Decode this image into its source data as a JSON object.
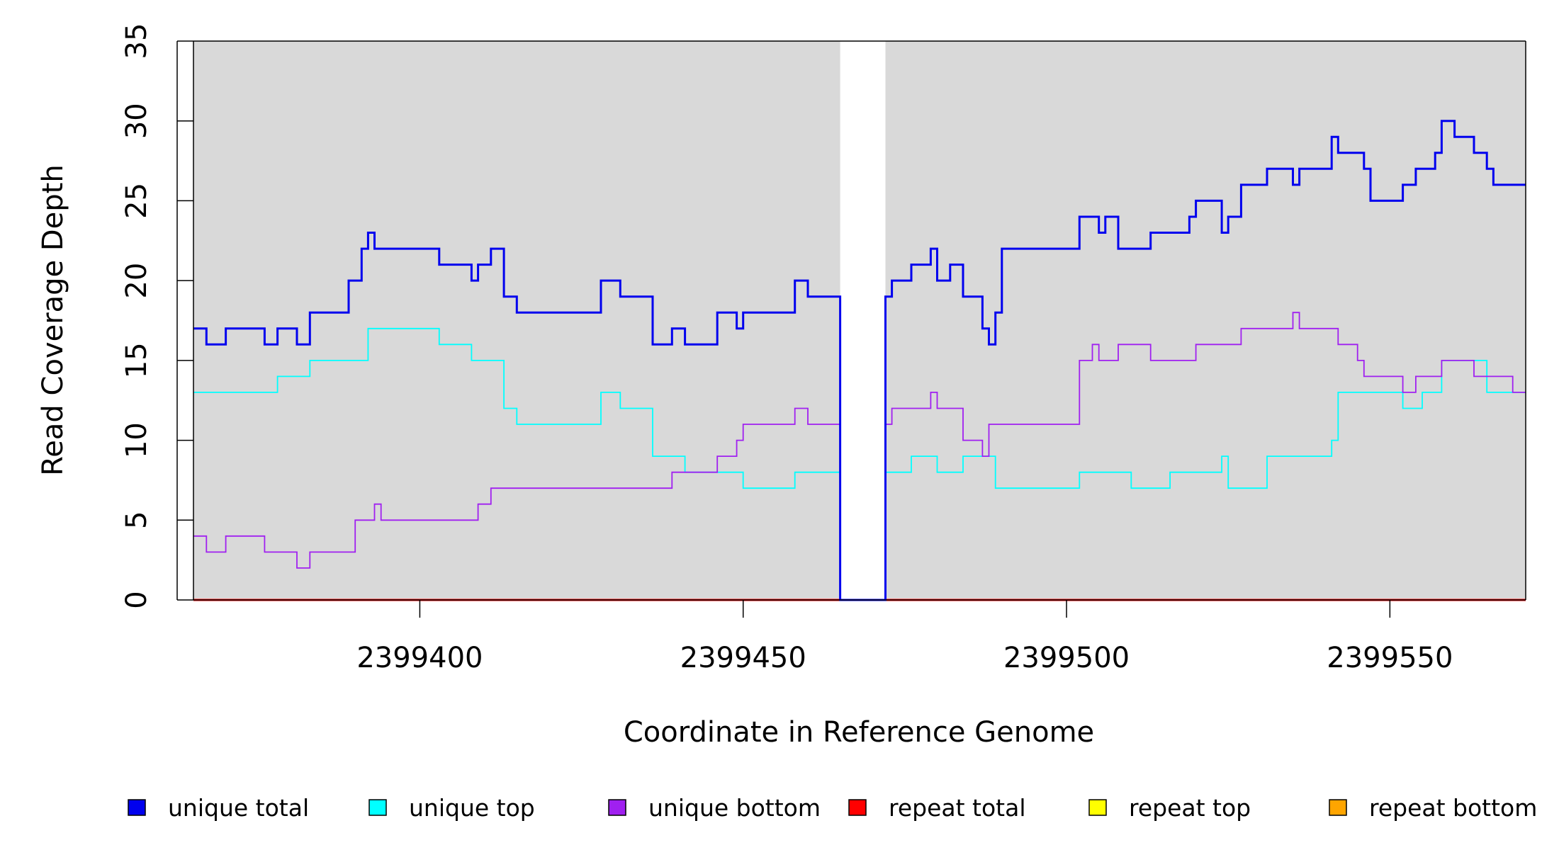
{
  "chart_data": {
    "type": "line",
    "title": "",
    "xlabel": "Coordinate in Reference Genome",
    "ylabel": "Read Coverage Depth",
    "xlim": [
      2399365,
      2399571
    ],
    "ylim": [
      0,
      35
    ],
    "yticks": [
      0,
      5,
      10,
      15,
      20,
      25,
      30,
      35
    ],
    "xticks": [
      2399400,
      2399450,
      2399500,
      2399550
    ],
    "xtick_labels": [
      "2399400",
      "2399450",
      "2399500",
      "2399550"
    ],
    "ytick_labels": [
      "0",
      "5",
      "10",
      "15",
      "20",
      "25",
      "30",
      "35"
    ],
    "background": "#d9d9d9",
    "gap": [
      2399465,
      2399472
    ],
    "legend": {
      "placement": "bottom",
      "entries": [
        {
          "label": "unique total",
          "color": "#0000ee"
        },
        {
          "label": "unique top",
          "color": "#00ffff"
        },
        {
          "label": "unique bottom",
          "color": "#a020f0"
        },
        {
          "label": "repeat total",
          "color": "#ff0000"
        },
        {
          "label": "repeat top",
          "color": "#ffff00"
        },
        {
          "label": "repeat bottom",
          "color": "#ffa500"
        }
      ]
    },
    "series": [
      {
        "name": "unique total",
        "color": "#0000ee",
        "step": true,
        "x": [
          2399365,
          2399367,
          2399370,
          2399376,
          2399378,
          2399381,
          2399383,
          2399389,
          2399391,
          2399392,
          2399393,
          2399403,
          2399408,
          2399409,
          2399411,
          2399413,
          2399415,
          2399428,
          2399431,
          2399436,
          2399439,
          2399441,
          2399446,
          2399449,
          2399450,
          2399458,
          2399460,
          2399465,
          2399472,
          2399473,
          2399476,
          2399479,
          2399480,
          2399482,
          2399484,
          2399487,
          2399488,
          2399489,
          2399490,
          2399502,
          2399505,
          2399506,
          2399508,
          2399513,
          2399519,
          2399520,
          2399524,
          2399525,
          2399527,
          2399531,
          2399535,
          2399536,
          2399541,
          2399542,
          2399546,
          2399547,
          2399552,
          2399554,
          2399557,
          2399558,
          2399560,
          2399563,
          2399565,
          2399566,
          2399569,
          2399571
        ],
        "y": [
          17,
          16,
          17,
          16,
          17,
          16,
          18,
          20,
          22,
          23,
          22,
          21,
          20,
          21,
          22,
          19,
          18,
          20,
          19,
          16,
          17,
          16,
          18,
          17,
          18,
          20,
          19,
          0,
          19,
          20,
          21,
          22,
          20,
          21,
          19,
          17,
          16,
          18,
          22,
          24,
          23,
          24,
          22,
          23,
          24,
          25,
          23,
          24,
          26,
          27,
          26,
          27,
          29,
          28,
          27,
          25,
          26,
          27,
          28,
          30,
          29,
          28,
          27,
          26,
          26,
          26
        ]
      },
      {
        "name": "unique top",
        "color": "#00ffff",
        "step": true,
        "x": [
          2399365,
          2399378,
          2399383,
          2399392,
          2399403,
          2399408,
          2399413,
          2399415,
          2399428,
          2399431,
          2399436,
          2399441,
          2399450,
          2399458,
          2399465,
          2399472,
          2399476,
          2399480,
          2399484,
          2399489,
          2399502,
          2399510,
          2399516,
          2399524,
          2399525,
          2399531,
          2399541,
          2399542,
          2399552,
          2399555,
          2399558,
          2399560,
          2399565,
          2399571
        ],
        "y": [
          13,
          14,
          15,
          17,
          16,
          15,
          12,
          11,
          13,
          12,
          9,
          8,
          7,
          8,
          0,
          8,
          9,
          8,
          9,
          7,
          8,
          7,
          8,
          9,
          7,
          9,
          10,
          13,
          12,
          13,
          15,
          15,
          13,
          13
        ]
      },
      {
        "name": "unique bottom",
        "color": "#a020f0",
        "step": true,
        "x": [
          2399365,
          2399367,
          2399370,
          2399376,
          2399381,
          2399383,
          2399390,
          2399393,
          2399394,
          2399409,
          2399411,
          2399439,
          2399446,
          2399449,
          2399450,
          2399458,
          2399460,
          2399465,
          2399472,
          2399473,
          2399479,
          2399480,
          2399484,
          2399487,
          2399488,
          2399502,
          2399504,
          2399505,
          2399508,
          2399513,
          2399520,
          2399527,
          2399535,
          2399536,
          2399542,
          2399545,
          2399546,
          2399552,
          2399554,
          2399558,
          2399563,
          2399569,
          2399571
        ],
        "y": [
          4,
          3,
          4,
          3,
          2,
          3,
          5,
          6,
          5,
          6,
          7,
          8,
          9,
          10,
          11,
          12,
          11,
          0,
          11,
          12,
          13,
          12,
          10,
          9,
          11,
          15,
          16,
          15,
          16,
          15,
          16,
          17,
          18,
          17,
          16,
          15,
          14,
          13,
          14,
          15,
          14,
          13,
          13
        ]
      },
      {
        "name": "repeat total",
        "color": "#ff0000",
        "step": true,
        "x": [
          2399365,
          2399571
        ],
        "y": [
          0,
          0
        ]
      },
      {
        "name": "repeat top",
        "color": "#ffff00",
        "step": true,
        "x": [
          2399365,
          2399571
        ],
        "y": [
          0,
          0
        ]
      },
      {
        "name": "repeat bottom",
        "color": "#ffa500",
        "step": true,
        "x": [
          2399365,
          2399571
        ],
        "y": [
          0,
          0
        ]
      }
    ]
  }
}
